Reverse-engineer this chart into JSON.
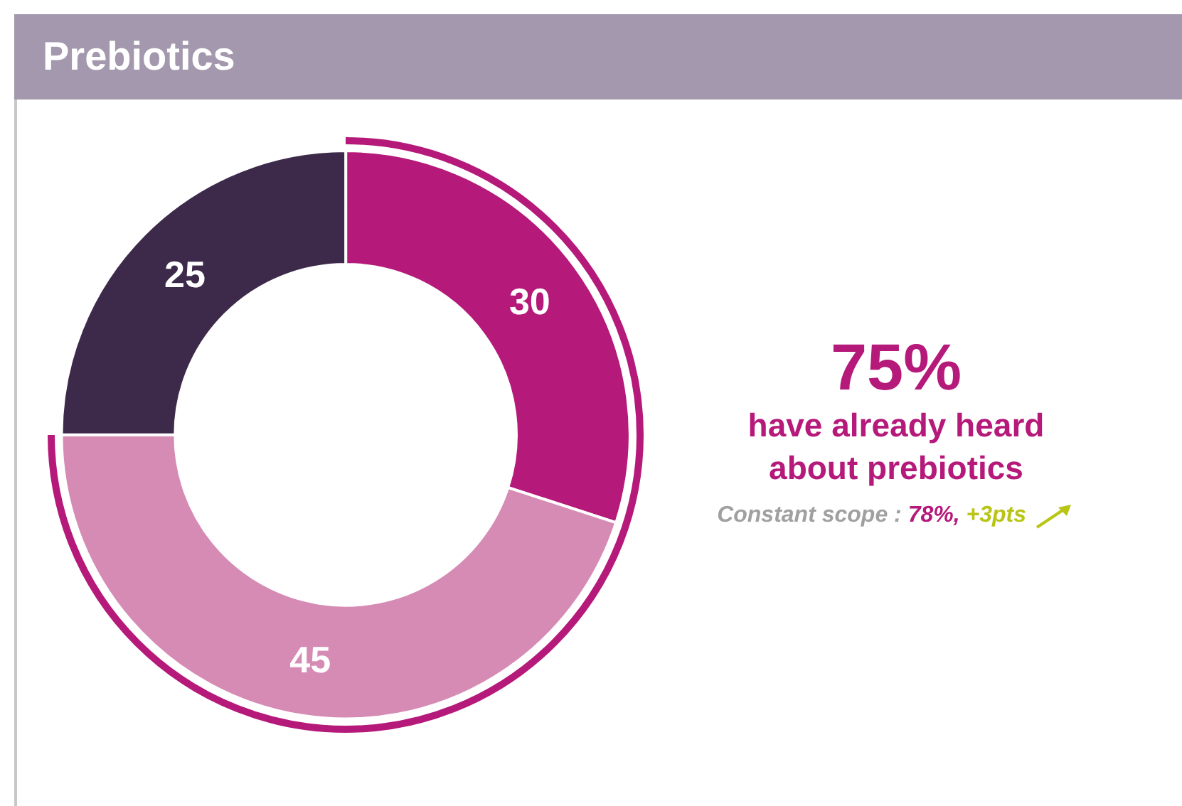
{
  "chart_data": {
    "type": "donut",
    "title": "Prebiotics",
    "categories": [
      null,
      null,
      null
    ],
    "values": [
      30,
      45,
      25
    ],
    "colors": [
      "#b5197a",
      "#d68bb5",
      "#3d2a4a"
    ],
    "data_labels": true,
    "legend": false,
    "annotations": [
      "75%",
      "have already heard about prebiotics",
      "Constant scope :",
      "78%,",
      "+3pts"
    ]
  }
}
